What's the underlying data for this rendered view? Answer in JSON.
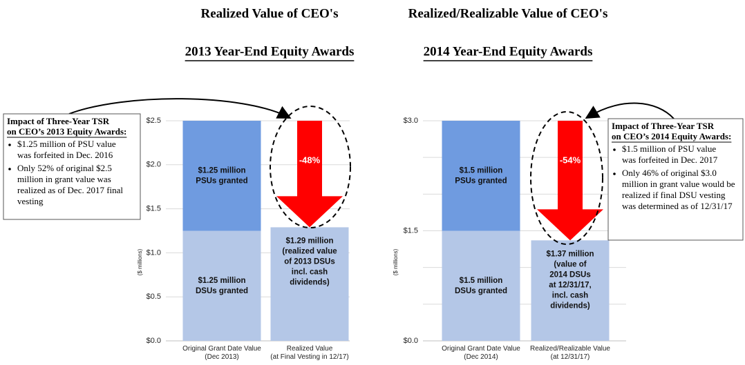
{
  "chart_data": [
    {
      "type": "stacked-bar",
      "title": [
        "Realized Value of CEO's",
        "2013 Year-End Equity Awards"
      ],
      "y_label": "($ millions)",
      "categories": [
        "Original Grant Date Value (Dec 2013)",
        "Realized Value (at Final Vesting in 12/17)"
      ],
      "series": [
        {
          "color": "#b4c7e7",
          "values": [
            1.25,
            1.29
          ],
          "value_labels": [
            [
              "$1.25 million",
              "DSUs granted"
            ],
            [
              "$1.29 million",
              "(realized value",
              "of 2013 DSUs",
              "incl. cash",
              "dividends)"
            ]
          ]
        },
        {
          "color": "#6f9be0",
          "values": [
            1.25,
            null
          ],
          "value_labels": [
            [
              "$1.25 million",
              "PSUs granted"
            ],
            null
          ]
        }
      ],
      "ylim": [
        0,
        2.5
      ],
      "yticks": [
        {
          "value": 0,
          "label": "$0.0"
        },
        {
          "value": 0.5,
          "label": "$0.5"
        },
        {
          "value": 1.0,
          "label": "$1.0"
        },
        {
          "value": 1.5,
          "label": "$1.5"
        },
        {
          "value": 2.0,
          "label": "$2.0"
        },
        {
          "value": 2.5,
          "label": "$2.5"
        }
      ],
      "grid": true,
      "change_label": "-48%",
      "arrow_color": "#ff0000",
      "note": {
        "title": [
          "Impact of Three-Year TSR",
          "on CEO’s 2013 Equity Awards:"
        ],
        "bullets": [
          [
            "$1.25 million of PSU value",
            "was forfeited in Dec. 2016"
          ],
          [
            "Only 52% of original $2.5",
            "million in grant value was",
            "realized as of Dec. 2017 final",
            "vesting"
          ]
        ]
      }
    },
    {
      "type": "stacked-bar",
      "title": [
        "Realized/Realizable Value of CEO's",
        "2014 Year-End Equity Awards"
      ],
      "y_label": "($ millions)",
      "categories": [
        "Original Grant Date Value (Dec 2014)",
        "Realized/Realizable Value (at 12/31/17)"
      ],
      "series": [
        {
          "color": "#b4c7e7",
          "values": [
            1.5,
            1.37
          ],
          "value_labels": [
            [
              "$1.5 million",
              "DSUs granted"
            ],
            [
              "$1.37 million",
              "(value of",
              "2014 DSUs",
              "at 12/31/17,",
              "incl. cash",
              "dividends)"
            ]
          ]
        },
        {
          "color": "#6f9be0",
          "values": [
            1.5,
            null
          ],
          "value_labels": [
            [
              "$1.5 million",
              "PSUs granted"
            ],
            null
          ]
        }
      ],
      "ylim": [
        0,
        3.0
      ],
      "yticks": [
        {
          "value": 0,
          "label": "$0.0"
        },
        {
          "value": 1.5,
          "label": "$1.5"
        },
        {
          "value": 3.0,
          "label": "$3.0"
        }
      ],
      "minor_gridlines": [
        0.5,
        1.0,
        2.0,
        2.5
      ],
      "grid": true,
      "change_label": "-54%",
      "arrow_color": "#ff0000",
      "note": {
        "title": [
          "Impact of Three-Year TSR",
          "on CEO’s 2014 Equity Awards:"
        ],
        "bullets": [
          [
            "$1.5 million of PSU value",
            "was forfeited in Dec. 2017"
          ],
          [
            "Only 46% of original $3.0",
            "million in grant value would be",
            "realized if final DSU vesting",
            "was determined as of 12/31/17"
          ]
        ]
      }
    }
  ]
}
